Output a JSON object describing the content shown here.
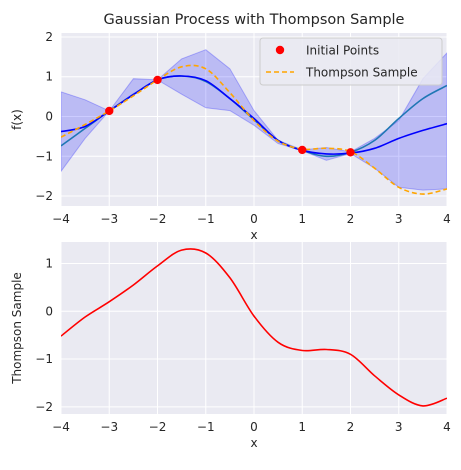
{
  "chart_data": [
    {
      "type": "line",
      "title": "Gaussian Process with Thompson Sample",
      "xlabel": "x",
      "ylabel": "f(x)",
      "xlim": [
        -4,
        4
      ],
      "ylim": [
        -2.25,
        2.1
      ],
      "grid": true,
      "legend_placement": "top-right",
      "x_ticks": [
        -4,
        -3,
        -2,
        -1,
        0,
        1,
        2,
        3,
        4
      ],
      "y_ticks": [
        -2,
        -1,
        0,
        1,
        2
      ],
      "x_tick_labels": [
        "−4",
        "−3",
        "−2",
        "−1",
        "0",
        "1",
        "2",
        "3",
        "4"
      ],
      "y_tick_labels": [
        "−2",
        "−1",
        "0",
        "1",
        "2"
      ],
      "x": [
        -4,
        -3.5,
        -3,
        -2.5,
        -2,
        -1.5,
        -1,
        -0.5,
        0,
        0.5,
        1,
        1.5,
        2,
        2.5,
        3,
        3.5,
        4
      ],
      "series": [
        {
          "kind": "band",
          "lower": [
            -1.38,
            -0.55,
            0.14,
            0.58,
            0.92,
            0.56,
            0.22,
            0.15,
            -0.22,
            -0.68,
            -0.86,
            -1.1,
            -0.93,
            -1.3,
            -1.78,
            -1.85,
            -1.82
          ],
          "upper": [
            0.62,
            0.42,
            0.14,
            0.95,
            0.92,
            1.45,
            1.68,
            1.2,
            0.15,
            -0.6,
            -0.84,
            -0.78,
            -0.89,
            -0.55,
            -0.1,
            0.95,
            1.6
          ],
          "color": "#0000ff"
        },
        {
          "kind": "line",
          "values": [
            -0.74,
            -0.3,
            0.14,
            0.55,
            0.92,
            1.02,
            0.88,
            0.45,
            -0.08,
            -0.6,
            -0.85,
            -1.0,
            -0.9,
            -0.6,
            -0.05,
            0.45,
            0.78
          ],
          "color": "#1f77b4"
        },
        {
          "kind": "line",
          "values": [
            -0.38,
            -0.25,
            0.14,
            0.55,
            0.92,
            1.02,
            0.9,
            0.45,
            -0.05,
            -0.6,
            -0.85,
            -0.94,
            -0.92,
            -0.8,
            -0.55,
            -0.35,
            -0.18
          ],
          "color": "#0000ff"
        },
        {
          "kind": "line",
          "name": "Thompson Sample",
          "dashed": true,
          "values": [
            -0.52,
            -0.2,
            0.14,
            0.52,
            0.92,
            1.25,
            1.2,
            0.6,
            -0.1,
            -0.62,
            -0.82,
            -0.8,
            -0.88,
            -1.3,
            -1.78,
            -1.95,
            -1.82
          ],
          "color": "#ffa500"
        },
        {
          "kind": "scatter",
          "name": "Initial Points",
          "x": [
            -3,
            -2,
            1,
            2
          ],
          "values": [
            0.14,
            0.92,
            -0.84,
            -0.9
          ],
          "color": "#ff0000"
        }
      ],
      "legend": [
        {
          "label": "Initial Points",
          "marker": "dot",
          "color": "#ff0000"
        },
        {
          "label": "Thompson Sample",
          "marker": "dash",
          "color": "#ffa500"
        }
      ]
    },
    {
      "type": "line",
      "title": "",
      "xlabel": "x",
      "ylabel": "Thompson Sample",
      "xlim": [
        -4,
        4
      ],
      "ylim": [
        -2.15,
        1.45
      ],
      "grid": true,
      "x_ticks": [
        -4,
        -3,
        -2,
        -1,
        0,
        1,
        2,
        3,
        4
      ],
      "y_ticks": [
        -2,
        -1,
        0,
        1
      ],
      "x_tick_labels": [
        "−4",
        "−3",
        "−2",
        "−1",
        "0",
        "1",
        "2",
        "3",
        "4"
      ],
      "y_tick_labels": [
        "−2",
        "−1",
        "0",
        "1"
      ],
      "x": [
        -4,
        -3.5,
        -3,
        -2.5,
        -2,
        -1.5,
        -1,
        -0.5,
        0,
        0.5,
        1,
        1.5,
        2,
        2.5,
        3,
        3.5,
        4
      ],
      "series": [
        {
          "kind": "line",
          "values": [
            -0.52,
            -0.12,
            0.2,
            0.55,
            0.95,
            1.28,
            1.22,
            0.7,
            -0.1,
            -0.65,
            -0.82,
            -0.8,
            -0.9,
            -1.35,
            -1.75,
            -1.98,
            -1.82
          ],
          "color": "#ff0000"
        }
      ]
    }
  ]
}
